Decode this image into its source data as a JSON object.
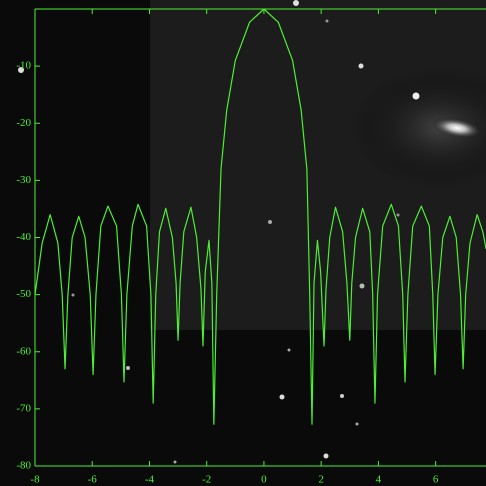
{
  "chart_data": {
    "type": "line",
    "color": "#4cf032",
    "x": [
      -8,
      -7.75,
      -7.47,
      -7.2,
      -7.05,
      -6.95,
      -6.85,
      -6.7,
      -6.47,
      -6.25,
      -6.07,
      -5.97,
      -5.87,
      -5.7,
      -5.45,
      -5.15,
      -4.98,
      -4.89,
      -4.79,
      -4.6,
      -4.4,
      -4.1,
      -3.95,
      -3.87,
      -3.78,
      -3.65,
      -3.43,
      -3.2,
      -3.07,
      -3.0,
      -2.93,
      -2.8,
      -2.55,
      -2.35,
      -2.2,
      -2.13,
      -2.05,
      -1.92,
      -1.82,
      -1.75,
      -1.65,
      -1.5,
      -1.3,
      -1.0,
      -0.5,
      0,
      0.5,
      1.0,
      1.3,
      1.5,
      1.6,
      1.68,
      1.75,
      1.87,
      1.98,
      2.1,
      2.17,
      2.3,
      2.5,
      2.75,
      2.9,
      3.0,
      3.07,
      3.2,
      3.45,
      3.7,
      3.8,
      3.88,
      3.97,
      4.15,
      4.45,
      4.7,
      4.85,
      4.93,
      5.03,
      5.2,
      5.5,
      5.78,
      5.9,
      5.98,
      6.08,
      6.25,
      6.5,
      6.72,
      6.87,
      6.96,
      7.05,
      7.2,
      7.45,
      7.65,
      7.76
    ],
    "values": [
      -50,
      -41,
      -36,
      -41,
      -50,
      -63,
      -50,
      -40,
      -36.3,
      -40,
      -50,
      -64,
      -50,
      -38,
      -34.5,
      -38,
      -50,
      -65.3,
      -50,
      -38,
      -34.2,
      -38,
      -50,
      -69,
      -50,
      -39,
      -34.9,
      -40,
      -48,
      -58,
      -48,
      -39,
      -34.7,
      -40,
      -49,
      -59,
      -46,
      -40.5,
      -48,
      -72.7,
      -50,
      -28,
      -17.7,
      -9,
      -2.3,
      0,
      -2.3,
      -9,
      -17.7,
      -28,
      -50,
      -72.7,
      -48,
      -40.5,
      -46,
      -59,
      -49,
      -40,
      -34.7,
      -39,
      -48,
      -58,
      -48,
      -40,
      -34.9,
      -39,
      -50,
      -69,
      -50,
      -38,
      -34.2,
      -38,
      -50,
      -65.3,
      -50,
      -38,
      -34.5,
      -38,
      -50,
      -64,
      -50,
      -40,
      -36.3,
      -40,
      -50,
      -63,
      -50,
      -41,
      -36,
      -39,
      -42
    ],
    "xlim": [
      -8,
      7.76
    ],
    "ylim": [
      -80,
      0
    ],
    "xticks": [
      -8,
      -6,
      -4,
      -2,
      0,
      2,
      4,
      6
    ],
    "yticks": [
      -80,
      -70,
      -60,
      -50,
      -40,
      -30,
      -20,
      -10
    ]
  }
}
